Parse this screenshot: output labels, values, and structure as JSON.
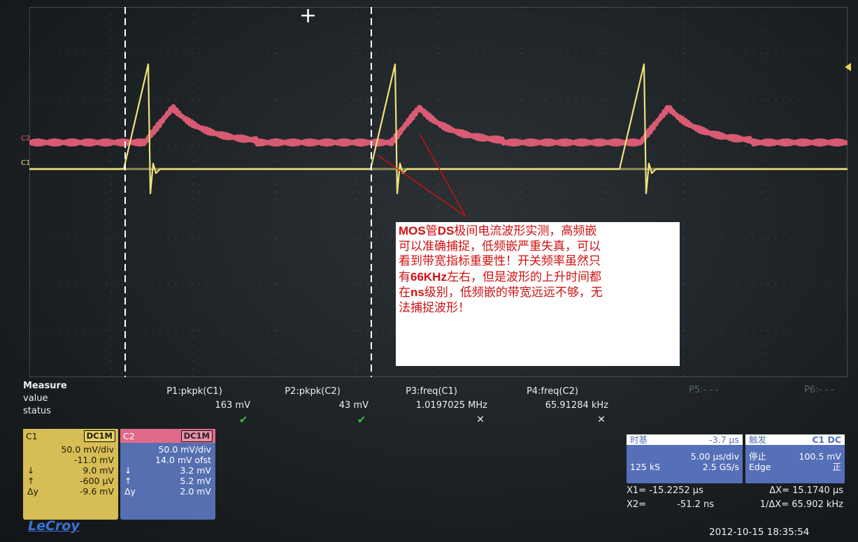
{
  "callout": {
    "lines": [
      [
        {
          "t": "MOS",
          "a": true
        },
        {
          "t": "管"
        },
        {
          "t": "DS",
          "a": true
        },
        {
          "t": "极间电流波形实测，高频嵌"
        }
      ],
      [
        {
          "t": "可以准确捕捉，低频嵌严重失真，可以"
        }
      ],
      [
        {
          "t": "看到带宽指标重要性！开关频率虽然只"
        }
      ],
      [
        {
          "t": "有"
        },
        {
          "t": "66KHz",
          "a": true
        },
        {
          "t": "左右，但是波形的上升时间都"
        }
      ],
      [
        {
          "t": "在"
        },
        {
          "t": "ns",
          "a": true
        },
        {
          "t": "级别，低频嵌的带宽远远不够，无"
        }
      ],
      [
        {
          "t": "法捕捉波形！"
        }
      ]
    ]
  },
  "trace_labels": {
    "c1": "C1",
    "c2": "C2"
  },
  "measure": {
    "title": "Measure",
    "row_value": "value",
    "row_status": "status",
    "params": [
      {
        "name": "P1:pkpk(C1)",
        "value": "163 mV",
        "status": "check"
      },
      {
        "name": "P2:pkpk(C2)",
        "value": "43 mV",
        "status": "check"
      },
      {
        "name": "P3:freq(C1)",
        "value": "1.0197025 MHz",
        "status": "cross"
      },
      {
        "name": "P4:freq(C2)",
        "value": "65.91284 kHz",
        "status": "cross"
      }
    ],
    "p5": "P5:- - -",
    "p6": "P6:- - -"
  },
  "channel1": {
    "name": "C1",
    "coupling": "DC1M",
    "rows": [
      {
        "k": "",
        "v": "50.0 mV/div"
      },
      {
        "k": "",
        "v": "-11.0 mV"
      },
      {
        "k": "↓",
        "v": "9.0 mV"
      },
      {
        "k": "↑",
        "v": "-600 µV"
      },
      {
        "k": "Δy",
        "v": "-9.6 mV"
      }
    ]
  },
  "channel2": {
    "name": "C2",
    "coupling": "DC1M",
    "rows": [
      {
        "k": "",
        "v": "50.0 mV/div"
      },
      {
        "k": "",
        "v": "14.0 mV ofst"
      },
      {
        "k": "↓",
        "v": "3.2 mV"
      },
      {
        "k": "↑",
        "v": "5.2 mV"
      },
      {
        "k": "Δy",
        "v": "2.0 mV"
      }
    ]
  },
  "timebase": {
    "label": "时基",
    "delay": "-3.7 µs",
    "scale": "5.00 µs/div",
    "samples": "125 kS",
    "rate": "2.5 GS/s"
  },
  "trigger": {
    "label": "触发",
    "tag": "C1 DC",
    "state": "停止",
    "level": "100.5 mV",
    "type": "Edge",
    "slope": "正"
  },
  "cursors": {
    "x1_label": "X1=",
    "x1": "-15.2252 µs",
    "dx_label": "ΔX=",
    "dx": "15.1740 µs",
    "x2_label": "X2=",
    "x2": "-51.2 ns",
    "inv_label": "1/ΔX=",
    "inv": "65.902 kHz"
  },
  "brand": "LeCroy",
  "timestamp": "2012-10-15 18:35:54",
  "colors": {
    "c1_trace": "#efe27a",
    "c2_trace": "#e8607a",
    "cursor": "#ffffff",
    "grid": "#6c7378",
    "annot_line": "#cc1111"
  }
}
